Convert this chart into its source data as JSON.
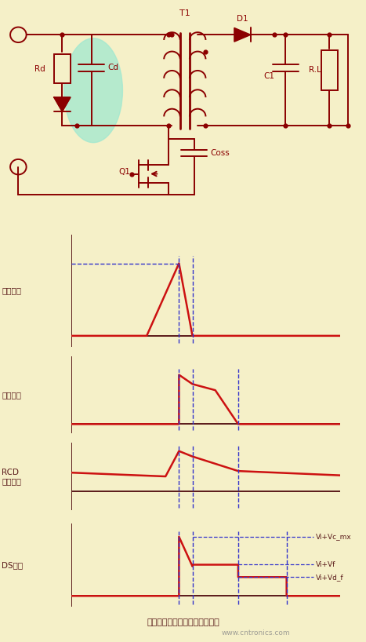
{
  "bg_color": "#f5f0c8",
  "circuit_color": "#8b0000",
  "highlight_color": "#a0e8d0",
  "arrow_color": "#7b2070",
  "signal_color": "#cc1111",
  "dashed_color": "#3333cc",
  "axis_label_color": "#5a1a1a",
  "text_color": "#5a1a1a",
  "title_text": "这个过程中非常有可能出现震荚",
  "watermark": "www.cntronics.com",
  "voltage_labels": [
    "Vi+Vc_mx",
    "Vi+Vf",
    "Vi+Vd_f"
  ]
}
